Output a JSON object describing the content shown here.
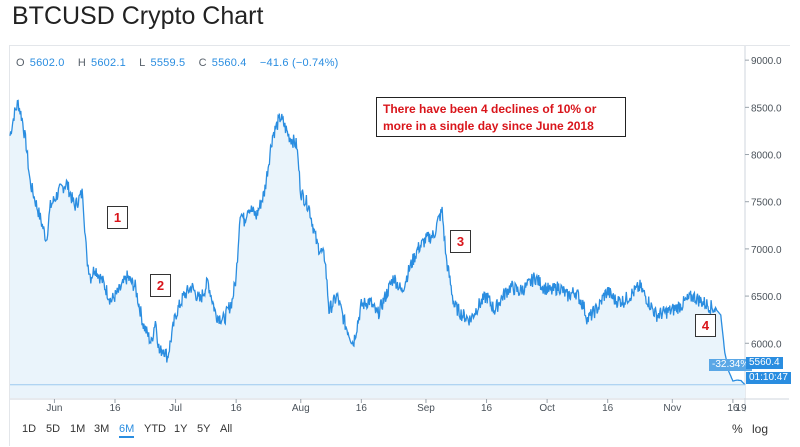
{
  "title": "BTCUSD Crypto Chart",
  "ohlc": {
    "o_label": "O",
    "o_value": "5602.0",
    "h_label": "H",
    "h_value": "5602.1",
    "l_label": "L",
    "l_value": "5559.5",
    "c_label": "C",
    "c_value": "5560.4",
    "change": "−41.6 (−0.74%)"
  },
  "annotation": "There have been 4 declines of 10% or more in a single day since June 2018",
  "markers": [
    "1",
    "2",
    "3",
    "4"
  ],
  "price_tags": {
    "last_price": "5560.4",
    "change_pct": "-32.34%",
    "countdown": "01:10:47"
  },
  "time_ranges": [
    "1D",
    "5D",
    "1M",
    "3M",
    "6M",
    "YTD",
    "1Y",
    "5Y",
    "All"
  ],
  "active_range": "6M",
  "options": {
    "percent": "%",
    "log": "log"
  },
  "colors": {
    "line": "#2a8de0",
    "fill": "#eaf4fb",
    "marker_text": "#d9151b"
  },
  "chart_data": {
    "type": "area",
    "title": "BTCUSD Crypto Chart",
    "ylim": [
      5420,
      9150
    ],
    "yticks": [
      6000,
      6500,
      7000,
      7500,
      8000,
      8500,
      9000
    ],
    "ytick_labels": [
      "6000.0",
      "6500.0",
      "7000.0",
      "7500.0",
      "8000.0",
      "8500.0",
      "9000.0"
    ],
    "xlim": [
      "2018-05-21",
      "2018-11-19"
    ],
    "xticks": [
      "2018-06-01",
      "2018-06-16",
      "2018-07-01",
      "2018-07-16",
      "2018-08-01",
      "2018-08-16",
      "2018-09-01",
      "2018-09-16",
      "2018-10-01",
      "2018-10-16",
      "2018-11-01",
      "2018-11-16"
    ],
    "xtick_labels": [
      "Jun",
      "16",
      "Jul",
      "16",
      "Aug",
      "16",
      "Sep",
      "16",
      "Oct",
      "16",
      "Nov",
      "16"
    ],
    "xtick_right_partial": "19",
    "grid": false,
    "series": [
      {
        "x": [
          "2018-05-21",
          "2018-05-22",
          "2018-05-23",
          "2018-05-24",
          "2018-05-25",
          "2018-05-26",
          "2018-05-27",
          "2018-05-28",
          "2018-05-29",
          "2018-05-30",
          "2018-05-31",
          "2018-06-02",
          "2018-06-04",
          "2018-06-06",
          "2018-06-08",
          "2018-06-09",
          "2018-06-10",
          "2018-06-11",
          "2018-06-13",
          "2018-06-15",
          "2018-06-17",
          "2018-06-19",
          "2018-06-21",
          "2018-06-23",
          "2018-06-24",
          "2018-06-25",
          "2018-06-26",
          "2018-06-27",
          "2018-06-28",
          "2018-06-29",
          "2018-07-01",
          "2018-07-03",
          "2018-07-05",
          "2018-07-07",
          "2018-07-09",
          "2018-07-11",
          "2018-07-13",
          "2018-07-15",
          "2018-07-16",
          "2018-07-17",
          "2018-07-18",
          "2018-07-19",
          "2018-07-21",
          "2018-07-23",
          "2018-07-25",
          "2018-07-27",
          "2018-07-29",
          "2018-07-31",
          "2018-08-01",
          "2018-08-03",
          "2018-08-05",
          "2018-08-07",
          "2018-08-08",
          "2018-08-10",
          "2018-08-12",
          "2018-08-14",
          "2018-08-16",
          "2018-08-18",
          "2018-08-20",
          "2018-08-22",
          "2018-08-24",
          "2018-08-26",
          "2018-08-28",
          "2018-08-30",
          "2018-09-01",
          "2018-09-03",
          "2018-09-04",
          "2018-09-05",
          "2018-09-06",
          "2018-09-08",
          "2018-09-10",
          "2018-09-12",
          "2018-09-14",
          "2018-09-16",
          "2018-09-18",
          "2018-09-20",
          "2018-09-22",
          "2018-09-24",
          "2018-09-26",
          "2018-09-28",
          "2018-09-30",
          "2018-10-02",
          "2018-10-04",
          "2018-10-06",
          "2018-10-08",
          "2018-10-10",
          "2018-10-11",
          "2018-10-12",
          "2018-10-14",
          "2018-10-15",
          "2018-10-16",
          "2018-10-18",
          "2018-10-20",
          "2018-10-24",
          "2018-10-28",
          "2018-11-01",
          "2018-11-03",
          "2018-11-06",
          "2018-11-08",
          "2018-11-10",
          "2018-11-12",
          "2018-11-13",
          "2018-11-14",
          "2018-11-15",
          "2018-11-16",
          "2018-11-17",
          "2018-11-18",
          "2018-11-19"
        ],
        "y": [
          8200,
          8420,
          8550,
          8380,
          8100,
          7700,
          7550,
          7400,
          7250,
          7100,
          7450,
          7600,
          7700,
          7450,
          7600,
          6900,
          6700,
          6800,
          6650,
          6450,
          6550,
          6700,
          6600,
          6200,
          6100,
          6000,
          6250,
          5900,
          5950,
          5850,
          6300,
          6500,
          6600,
          6450,
          6650,
          6300,
          6250,
          6450,
          6700,
          7400,
          7300,
          7450,
          7350,
          7600,
          8200,
          8400,
          8200,
          8100,
          7600,
          7450,
          7050,
          6900,
          6350,
          6500,
          6200,
          6000,
          6400,
          6450,
          6300,
          6500,
          6700,
          6550,
          6800,
          7000,
          7100,
          7150,
          7300,
          7400,
          6900,
          6400,
          6300,
          6250,
          6400,
          6500,
          6350,
          6500,
          6600,
          6550,
          6600,
          6700,
          6600,
          6550,
          6600,
          6500,
          6550,
          6400,
          6250,
          6300,
          6400,
          6500,
          6550,
          6450,
          6450,
          6600,
          6300,
          6350,
          6400,
          6500,
          6450,
          6400,
          6350,
          6300,
          5900,
          5700,
          5600,
          5610,
          5605,
          5560
        ]
      }
    ]
  }
}
